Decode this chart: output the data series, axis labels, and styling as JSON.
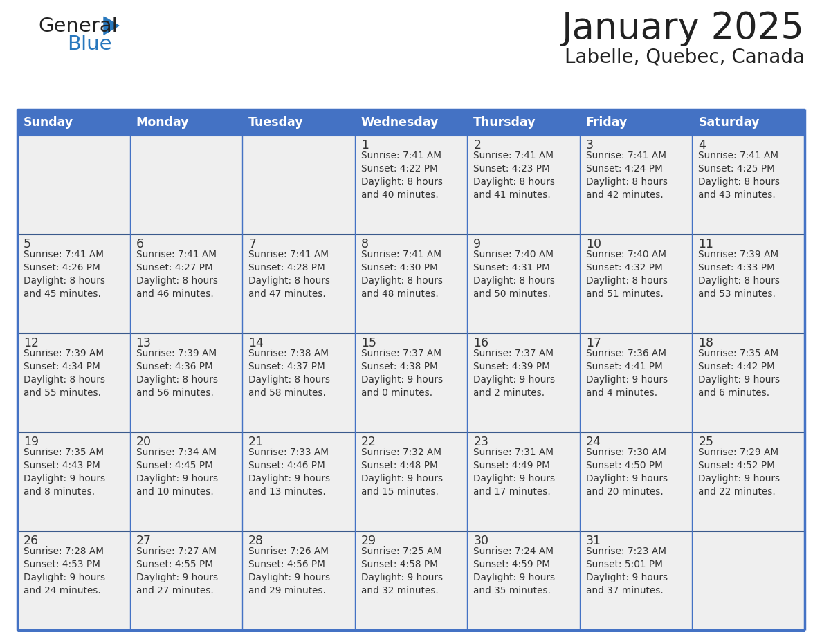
{
  "title": "January 2025",
  "subtitle": "Labelle, Quebec, Canada",
  "days_of_week": [
    "Sunday",
    "Monday",
    "Tuesday",
    "Wednesday",
    "Thursday",
    "Friday",
    "Saturday"
  ],
  "header_bg": "#4472C4",
  "header_text": "#FFFFFF",
  "cell_bg": "#EFEFEF",
  "separator_color": "#3A5A8C",
  "border_color": "#4472C4",
  "day_num_color": "#333333",
  "text_color": "#333333",
  "title_color": "#222222",
  "logo_color_general": "#222222",
  "logo_color_blue": "#2878BE",
  "logo_triangle_color": "#2878BE",
  "calendar_data": [
    [
      {
        "day": null,
        "info": ""
      },
      {
        "day": null,
        "info": ""
      },
      {
        "day": null,
        "info": ""
      },
      {
        "day": 1,
        "info": "Sunrise: 7:41 AM\nSunset: 4:22 PM\nDaylight: 8 hours\nand 40 minutes."
      },
      {
        "day": 2,
        "info": "Sunrise: 7:41 AM\nSunset: 4:23 PM\nDaylight: 8 hours\nand 41 minutes."
      },
      {
        "day": 3,
        "info": "Sunrise: 7:41 AM\nSunset: 4:24 PM\nDaylight: 8 hours\nand 42 minutes."
      },
      {
        "day": 4,
        "info": "Sunrise: 7:41 AM\nSunset: 4:25 PM\nDaylight: 8 hours\nand 43 minutes."
      }
    ],
    [
      {
        "day": 5,
        "info": "Sunrise: 7:41 AM\nSunset: 4:26 PM\nDaylight: 8 hours\nand 45 minutes."
      },
      {
        "day": 6,
        "info": "Sunrise: 7:41 AM\nSunset: 4:27 PM\nDaylight: 8 hours\nand 46 minutes."
      },
      {
        "day": 7,
        "info": "Sunrise: 7:41 AM\nSunset: 4:28 PM\nDaylight: 8 hours\nand 47 minutes."
      },
      {
        "day": 8,
        "info": "Sunrise: 7:41 AM\nSunset: 4:30 PM\nDaylight: 8 hours\nand 48 minutes."
      },
      {
        "day": 9,
        "info": "Sunrise: 7:40 AM\nSunset: 4:31 PM\nDaylight: 8 hours\nand 50 minutes."
      },
      {
        "day": 10,
        "info": "Sunrise: 7:40 AM\nSunset: 4:32 PM\nDaylight: 8 hours\nand 51 minutes."
      },
      {
        "day": 11,
        "info": "Sunrise: 7:39 AM\nSunset: 4:33 PM\nDaylight: 8 hours\nand 53 minutes."
      }
    ],
    [
      {
        "day": 12,
        "info": "Sunrise: 7:39 AM\nSunset: 4:34 PM\nDaylight: 8 hours\nand 55 minutes."
      },
      {
        "day": 13,
        "info": "Sunrise: 7:39 AM\nSunset: 4:36 PM\nDaylight: 8 hours\nand 56 minutes."
      },
      {
        "day": 14,
        "info": "Sunrise: 7:38 AM\nSunset: 4:37 PM\nDaylight: 8 hours\nand 58 minutes."
      },
      {
        "day": 15,
        "info": "Sunrise: 7:37 AM\nSunset: 4:38 PM\nDaylight: 9 hours\nand 0 minutes."
      },
      {
        "day": 16,
        "info": "Sunrise: 7:37 AM\nSunset: 4:39 PM\nDaylight: 9 hours\nand 2 minutes."
      },
      {
        "day": 17,
        "info": "Sunrise: 7:36 AM\nSunset: 4:41 PM\nDaylight: 9 hours\nand 4 minutes."
      },
      {
        "day": 18,
        "info": "Sunrise: 7:35 AM\nSunset: 4:42 PM\nDaylight: 9 hours\nand 6 minutes."
      }
    ],
    [
      {
        "day": 19,
        "info": "Sunrise: 7:35 AM\nSunset: 4:43 PM\nDaylight: 9 hours\nand 8 minutes."
      },
      {
        "day": 20,
        "info": "Sunrise: 7:34 AM\nSunset: 4:45 PM\nDaylight: 9 hours\nand 10 minutes."
      },
      {
        "day": 21,
        "info": "Sunrise: 7:33 AM\nSunset: 4:46 PM\nDaylight: 9 hours\nand 13 minutes."
      },
      {
        "day": 22,
        "info": "Sunrise: 7:32 AM\nSunset: 4:48 PM\nDaylight: 9 hours\nand 15 minutes."
      },
      {
        "day": 23,
        "info": "Sunrise: 7:31 AM\nSunset: 4:49 PM\nDaylight: 9 hours\nand 17 minutes."
      },
      {
        "day": 24,
        "info": "Sunrise: 7:30 AM\nSunset: 4:50 PM\nDaylight: 9 hours\nand 20 minutes."
      },
      {
        "day": 25,
        "info": "Sunrise: 7:29 AM\nSunset: 4:52 PM\nDaylight: 9 hours\nand 22 minutes."
      }
    ],
    [
      {
        "day": 26,
        "info": "Sunrise: 7:28 AM\nSunset: 4:53 PM\nDaylight: 9 hours\nand 24 minutes."
      },
      {
        "day": 27,
        "info": "Sunrise: 7:27 AM\nSunset: 4:55 PM\nDaylight: 9 hours\nand 27 minutes."
      },
      {
        "day": 28,
        "info": "Sunrise: 7:26 AM\nSunset: 4:56 PM\nDaylight: 9 hours\nand 29 minutes."
      },
      {
        "day": 29,
        "info": "Sunrise: 7:25 AM\nSunset: 4:58 PM\nDaylight: 9 hours\nand 32 minutes."
      },
      {
        "day": 30,
        "info": "Sunrise: 7:24 AM\nSunset: 4:59 PM\nDaylight: 9 hours\nand 35 minutes."
      },
      {
        "day": 31,
        "info": "Sunrise: 7:23 AM\nSunset: 5:01 PM\nDaylight: 9 hours\nand 37 minutes."
      },
      {
        "day": null,
        "info": ""
      }
    ]
  ]
}
